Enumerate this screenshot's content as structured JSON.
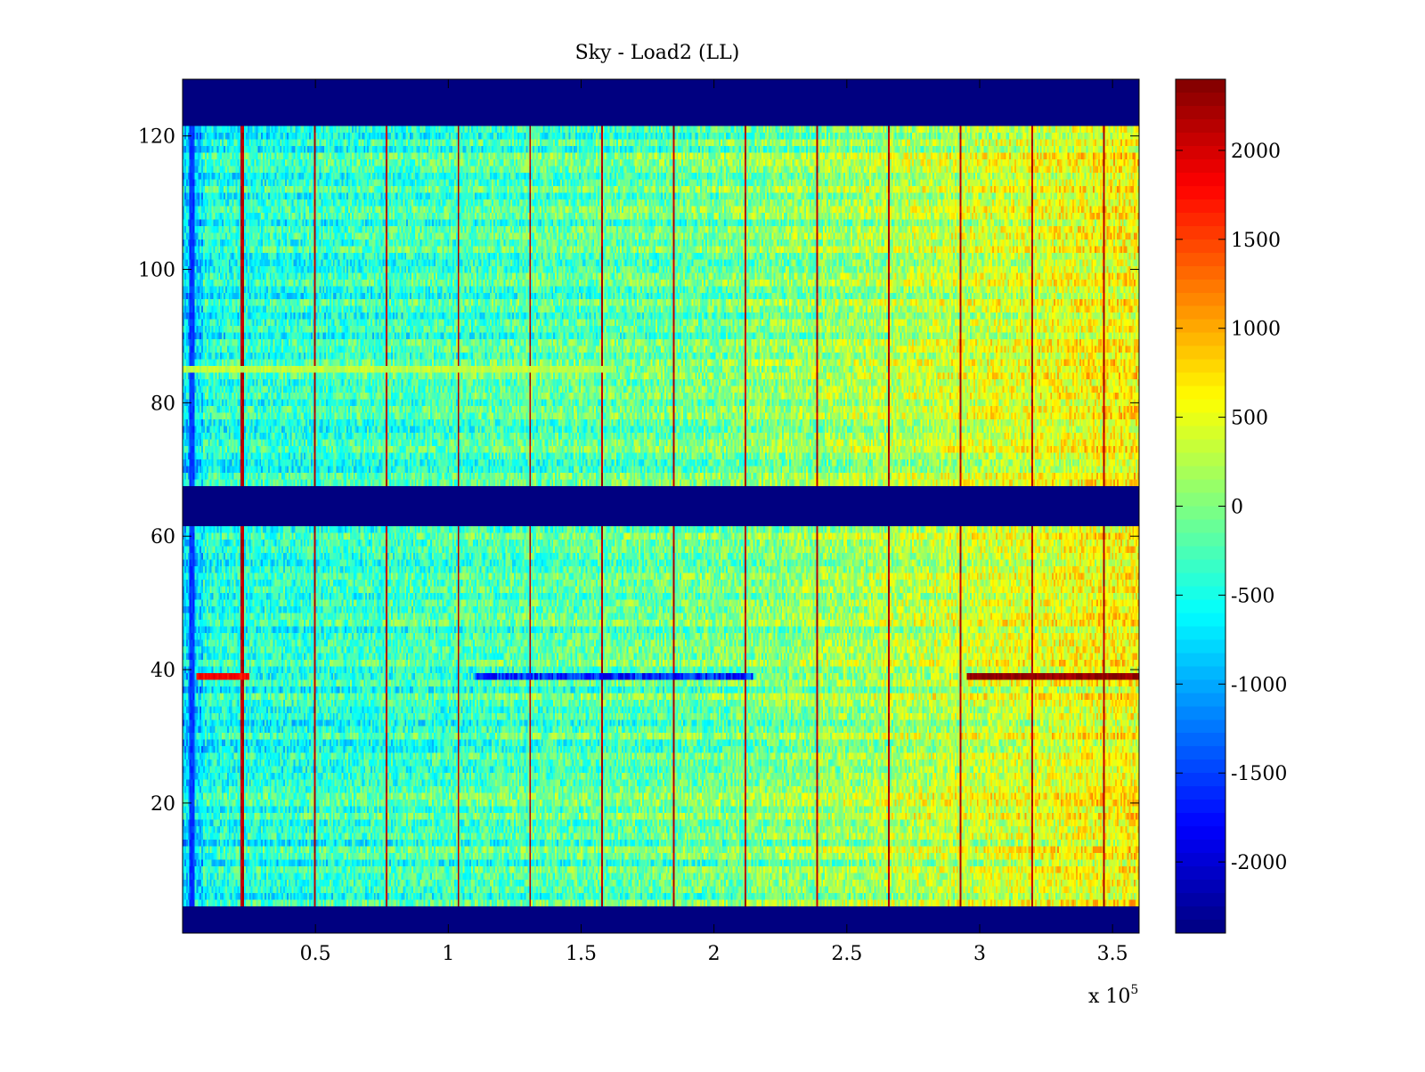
{
  "chart_data": {
    "type": "heatmap",
    "title": "Sky - Load2 (LL)",
    "xlabel": "",
    "ylabel": "",
    "x_multiplier": "x 10",
    "x_exponent": "5",
    "xlim": [
      0,
      360000
    ],
    "ylim": [
      0.5,
      128.5
    ],
    "x_ticks": [
      50000,
      100000,
      150000,
      200000,
      250000,
      300000,
      350000
    ],
    "x_tick_labels": [
      "0.5",
      "1",
      "1.5",
      "2",
      "2.5",
      "3",
      "3.5"
    ],
    "y_ticks": [
      20,
      40,
      60,
      80,
      100,
      120
    ],
    "y_tick_labels": [
      "20",
      "40",
      "60",
      "80",
      "100",
      "120"
    ],
    "colormap": "jet",
    "clim": [
      -2400,
      2400
    ],
    "colorbar_ticks": [
      -2000,
      -1500,
      -1000,
      -500,
      0,
      500,
      1000,
      1500,
      2000
    ],
    "colorbar_tick_labels": [
      "-2000",
      "-1500",
      "-1000",
      "-500",
      "0",
      "500",
      "1000",
      "1500",
      "2000"
    ],
    "masked_row_ranges": [
      [
        1,
        4
      ],
      [
        62,
        67
      ],
      [
        122,
        128
      ]
    ],
    "fill_value": -2400,
    "dark_edge_column_x": 3500,
    "vertical_spike_x": [
      22500,
      50000,
      77000,
      104000,
      131000,
      158000,
      185000,
      212000,
      239000,
      266000,
      293000,
      320000,
      347000
    ],
    "background_trend": {
      "x": [
        0,
        100000,
        200000,
        280000,
        360000
      ],
      "value": [
        -500,
        -300,
        -100,
        250,
        600
      ]
    },
    "notable_rows": [
      {
        "row": 39,
        "segments": [
          {
            "x": [
              5000,
              25000
            ],
            "value": 1800
          },
          {
            "x": [
              110000,
              215000
            ],
            "value": -1600
          },
          {
            "x": [
              295000,
              360000
            ],
            "value": 2300
          }
        ]
      },
      {
        "row": 85,
        "segments": [
          {
            "x": [
              0,
              160000
            ],
            "value": 300
          }
        ]
      }
    ]
  }
}
